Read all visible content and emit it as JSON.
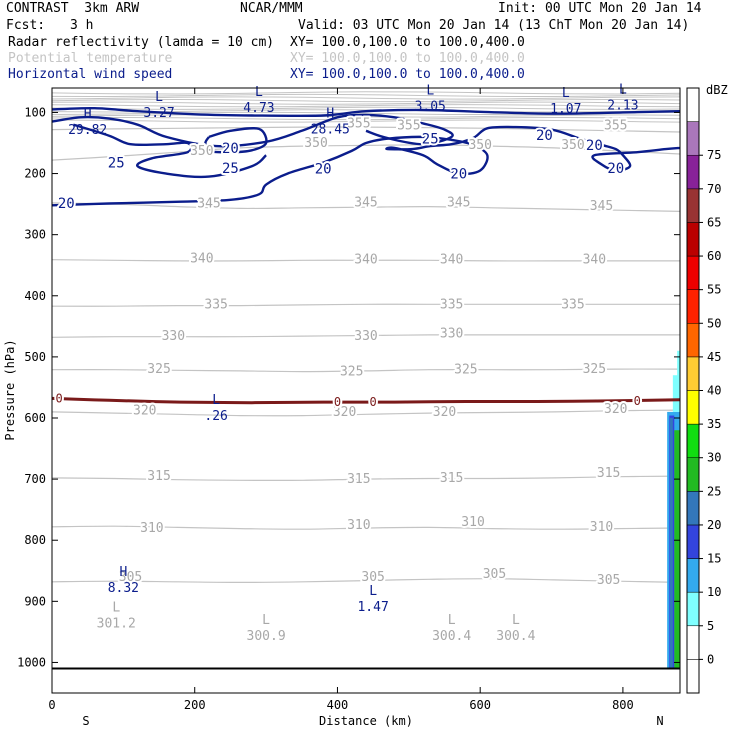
{
  "header": {
    "model": "CONTRAST  3km ARW",
    "source": "NCAR/MMM",
    "init": "Init: 00 UTC Mon 20 Jan 14",
    "fcst_label": "Fcst:",
    "fcst_value": "3 h",
    "valid": "Valid: 03 UTC Mon 20 Jan 14 (13 ChT Mon 20 Jan 14)",
    "fields": [
      {
        "name": "Radar reflectivity (lamda = 10 cm)",
        "xy": "XY= 100.0,100.0 to 100.0,400.0",
        "color": "#000000"
      },
      {
        "name": "Potential temperature",
        "xy": "XY= 100.0,100.0 to 100.0,400.0",
        "color": "#c4c4c4"
      },
      {
        "name": "Horizontal wind speed",
        "xy": "XY= 100.0,100.0 to 100.0,400.0",
        "color": "#0b1d8c"
      }
    ]
  },
  "chart_data": {
    "type": "heatmap",
    "title": "",
    "xlabel": "Distance (km)",
    "ylabel": "Pressure (hPa)",
    "xlim": [
      0,
      880
    ],
    "ylim": [
      1050,
      60
    ],
    "x_ticks": [
      0,
      200,
      400,
      600,
      800
    ],
    "y_ticks": [
      100,
      200,
      300,
      400,
      500,
      600,
      700,
      800,
      900,
      1000
    ],
    "x_end_labels": {
      "left": "S",
      "right": "N"
    },
    "colorbar": {
      "unit": "dBZ",
      "levels": [
        -5,
        0,
        5,
        10,
        15,
        20,
        25,
        30,
        35,
        40,
        45,
        50,
        55,
        60,
        65,
        70,
        75,
        80
      ],
      "labels": [
        0,
        5,
        10,
        15,
        20,
        25,
        30,
        35,
        40,
        45,
        50,
        55,
        60,
        65,
        70,
        75
      ],
      "colors": [
        "#ffffff",
        "#ffffff",
        "#7fffff",
        "#33aaee",
        "#3344dd",
        "#3377bb",
        "#22bb22",
        "#11dd11",
        "#ffff00",
        "#ffcc33",
        "#ff6600",
        "#ff2200",
        "#ee0000",
        "#bb0000",
        "#993333",
        "#882299",
        "#aa77bb",
        "#ffffff"
      ]
    },
    "theta_isentropes": [
      {
        "value": 305,
        "p": [
          868,
          867,
          868,
          869,
          868,
          866,
          864,
          863,
          865,
          867,
          869
        ]
      },
      {
        "value": 310,
        "p": [
          778,
          777,
          779,
          781,
          782,
          780,
          779,
          781,
          782,
          781,
          780
        ]
      },
      {
        "value": 315,
        "p": [
          698,
          699,
          701,
          702,
          702,
          700,
          699,
          699,
          698,
          696,
          695
        ]
      },
      {
        "value": 320,
        "p": [
          590,
          592,
          594,
          596,
          596,
          594,
          592,
          591,
          590,
          588,
          587
        ]
      },
      {
        "value": 325,
        "p": [
          521,
          521,
          522,
          523,
          524,
          523,
          521,
          521,
          521,
          520,
          520
        ]
      },
      {
        "value": 330,
        "p": [
          468,
          467,
          467,
          467,
          466,
          465,
          464,
          464,
          464,
          464,
          464
        ]
      },
      {
        "value": 335,
        "p": [
          417,
          417,
          416,
          416,
          415,
          414,
          414,
          414,
          414,
          414,
          414
        ]
      },
      {
        "value": 340,
        "p": [
          341,
          342,
          343,
          343,
          342,
          342,
          342,
          343,
          343,
          343,
          343
        ]
      },
      {
        "value": 345,
        "p": [
          248,
          250,
          254,
          257,
          256,
          255,
          254,
          256,
          258,
          260,
          262
        ]
      },
      {
        "value": 350,
        "p": [
          178,
          172,
          165,
          158,
          155,
          154,
          153,
          155,
          158,
          163,
          168
        ]
      },
      {
        "value": 355,
        "p": [
          128,
          127,
          126,
          125,
          124,
          124,
          125,
          126,
          128,
          130,
          132
        ]
      }
    ],
    "theta_x": [
      0,
      88,
      176,
      264,
      352,
      440,
      528,
      616,
      704,
      792,
      880
    ],
    "theta_labels": [
      {
        "text": "305",
        "x": 110,
        "p": 860
      },
      {
        "text": "305",
        "x": 450,
        "p": 860
      },
      {
        "text": "305",
        "x": 620,
        "p": 855
      },
      {
        "text": "305",
        "x": 780,
        "p": 865
      },
      {
        "text": "310",
        "x": 140,
        "p": 780
      },
      {
        "text": "310",
        "x": 430,
        "p": 775
      },
      {
        "text": "310",
        "x": 590,
        "p": 770
      },
      {
        "text": "310",
        "x": 770,
        "p": 778
      },
      {
        "text": "315",
        "x": 150,
        "p": 695
      },
      {
        "text": "315",
        "x": 430,
        "p": 700
      },
      {
        "text": "315",
        "x": 560,
        "p": 698
      },
      {
        "text": "315",
        "x": 780,
        "p": 690
      },
      {
        "text": "320",
        "x": 130,
        "p": 588
      },
      {
        "text": "320",
        "x": 410,
        "p": 590
      },
      {
        "text": "320",
        "x": 550,
        "p": 590
      },
      {
        "text": "320",
        "x": 790,
        "p": 585
      },
      {
        "text": "325",
        "x": 150,
        "p": 520
      },
      {
        "text": "325",
        "x": 420,
        "p": 524
      },
      {
        "text": "325",
        "x": 580,
        "p": 521
      },
      {
        "text": "325",
        "x": 760,
        "p": 520
      },
      {
        "text": "330",
        "x": 170,
        "p": 466
      },
      {
        "text": "330",
        "x": 440,
        "p": 466
      },
      {
        "text": "330",
        "x": 560,
        "p": 462
      },
      {
        "text": "335",
        "x": 230,
        "p": 414
      },
      {
        "text": "335",
        "x": 560,
        "p": 414
      },
      {
        "text": "335",
        "x": 730,
        "p": 414
      },
      {
        "text": "340",
        "x": 210,
        "p": 339
      },
      {
        "text": "340",
        "x": 440,
        "p": 341
      },
      {
        "text": "340",
        "x": 560,
        "p": 341
      },
      {
        "text": "340",
        "x": 760,
        "p": 341
      },
      {
        "text": "345",
        "x": 220,
        "p": 249
      },
      {
        "text": "345",
        "x": 440,
        "p": 247
      },
      {
        "text": "345",
        "x": 570,
        "p": 247
      },
      {
        "text": "345",
        "x": 770,
        "p": 253
      },
      {
        "text": "350",
        "x": 210,
        "p": 163
      },
      {
        "text": "350",
        "x": 370,
        "p": 150
      },
      {
        "text": "350",
        "x": 600,
        "p": 153
      },
      {
        "text": "350",
        "x": 730,
        "p": 153
      },
      {
        "text": "355",
        "x": 430,
        "p": 118
      },
      {
        "text": "355",
        "x": 500,
        "p": 121
      },
      {
        "text": "355",
        "x": 790,
        "p": 121
      }
    ],
    "theta_extrema": [
      {
        "mark": "L",
        "value": "301.2",
        "x": 90,
        "p": 930
      },
      {
        "mark": "L",
        "value": "300.9",
        "x": 300,
        "p": 950
      },
      {
        "mark": "L",
        "value": "300.4",
        "x": 560,
        "p": 950
      },
      {
        "mark": "L",
        "value": "300.4",
        "x": 650,
        "p": 950
      }
    ],
    "wind_contours": [
      {
        "value": 20,
        "points": [
          [
            0,
            252
          ],
          [
            80,
            249
          ],
          [
            180,
            246
          ],
          [
            250,
            243
          ],
          [
            290,
            234
          ],
          [
            300,
            218
          ],
          [
            330,
            200
          ],
          [
            380,
            182
          ],
          [
            420,
            163
          ],
          [
            440,
            150
          ],
          [
            470,
            143
          ],
          [
            520,
            140
          ],
          [
            560,
            145
          ],
          [
            590,
            153
          ],
          [
            610,
            170
          ],
          [
            600,
            195
          ],
          [
            570,
            200
          ],
          [
            540,
            185
          ],
          [
            520,
            170
          ],
          [
            480,
            158
          ],
          [
            470,
            160
          ],
          [
            505,
            160
          ],
          [
            530,
            155
          ],
          [
            560,
            152
          ],
          [
            590,
            142
          ],
          [
            610,
            126
          ],
          [
            650,
            124
          ],
          [
            700,
            128
          ],
          [
            740,
            143
          ],
          [
            770,
            153
          ],
          [
            790,
            160
          ],
          [
            800,
            170
          ],
          [
            810,
            188
          ],
          [
            790,
            195
          ],
          [
            770,
            185
          ],
          [
            760,
            170
          ],
          [
            820,
            165
          ],
          [
            860,
            160
          ],
          [
            880,
            158
          ]
        ]
      },
      {
        "value": 20,
        "points": [
          [
            220,
            140
          ],
          [
            250,
            130
          ],
          [
            290,
            127
          ],
          [
            300,
            150
          ],
          [
            280,
            162
          ],
          [
            250,
            165
          ],
          [
            220,
            163
          ],
          [
            215,
            150
          ],
          [
            220,
            140
          ]
        ]
      },
      {
        "value": 25,
        "points": [
          [
            0,
            115
          ],
          [
            40,
            108
          ],
          [
            80,
            110
          ],
          [
            120,
            120
          ],
          [
            160,
            140
          ],
          [
            230,
            155
          ],
          [
            300,
            148
          ],
          [
            350,
            130
          ],
          [
            400,
            108
          ],
          [
            440,
            104
          ],
          [
            480,
            108
          ],
          [
            520,
            118
          ],
          [
            550,
            128
          ],
          [
            560,
            140
          ],
          [
            520,
            152
          ],
          [
            470,
            142
          ],
          [
            440,
            130
          ]
        ]
      },
      {
        "value": 25,
        "points": [
          [
            30,
            120
          ],
          [
            80,
            138
          ],
          [
            110,
            152
          ],
          [
            160,
            152
          ],
          [
            190,
            150
          ],
          [
            190,
            165
          ],
          [
            140,
            175
          ],
          [
            120,
            188
          ],
          [
            160,
            200
          ],
          [
            220,
            205
          ],
          [
            280,
            188
          ],
          [
            300,
            170
          ]
        ]
      }
    ],
    "wind_labels": [
      {
        "text": "20",
        "x": 20,
        "p": 248
      },
      {
        "text": "20",
        "x": 250,
        "p": 158
      },
      {
        "text": "20",
        "x": 380,
        "p": 192
      },
      {
        "text": "20",
        "x": 570,
        "p": 200
      },
      {
        "text": "20",
        "x": 690,
        "p": 137
      },
      {
        "text": "20",
        "x": 760,
        "p": 153
      },
      {
        "text": "20",
        "x": 790,
        "p": 191
      },
      {
        "text": "25",
        "x": 90,
        "p": 182
      },
      {
        "text": "25",
        "x": 250,
        "p": 191
      },
      {
        "text": "25",
        "x": 530,
        "p": 143
      }
    ],
    "wind_extrema": [
      {
        "mark": "L",
        "value": "3.27",
        "x": 150,
        "p": 94
      },
      {
        "mark": "L",
        "value": "4.73",
        "x": 290,
        "p": 86
      },
      {
        "mark": "L",
        "value": "3.05",
        "x": 530,
        "p": 84
      },
      {
        "mark": "L",
        "value": "1.07",
        "x": 720,
        "p": 88
      },
      {
        "mark": "L",
        "value": "2.13",
        "x": 800,
        "p": 82
      },
      {
        "mark": "H",
        "value": "29.82",
        "x": 50,
        "p": 122
      },
      {
        "mark": "H",
        "value": "28.45",
        "x": 390,
        "p": 121
      },
      {
        "mark": "H",
        "value": "8.32",
        "x": 100,
        "p": 872
      },
      {
        "mark": "L",
        "value": "1.47",
        "x": 450,
        "p": 903
      },
      {
        "mark": "L",
        "value": ".26",
        "x": 230,
        "p": 590
      }
    ],
    "reflectivity_zero_line": {
      "value": 0,
      "x": [
        0,
        80,
        180,
        280,
        380,
        480,
        580,
        680,
        780,
        880
      ],
      "p": [
        568,
        571,
        574,
        575,
        574,
        574,
        573,
        573,
        572,
        570
      ],
      "labels": [
        {
          "text": "0",
          "x": 10,
          "p": 568
        },
        {
          "text": "0",
          "x": 400,
          "p": 574
        },
        {
          "text": "0",
          "x": 450,
          "p": 574
        },
        {
          "text": "0",
          "x": 820,
          "p": 572
        }
      ]
    },
    "surface_pressure": 1010
  }
}
